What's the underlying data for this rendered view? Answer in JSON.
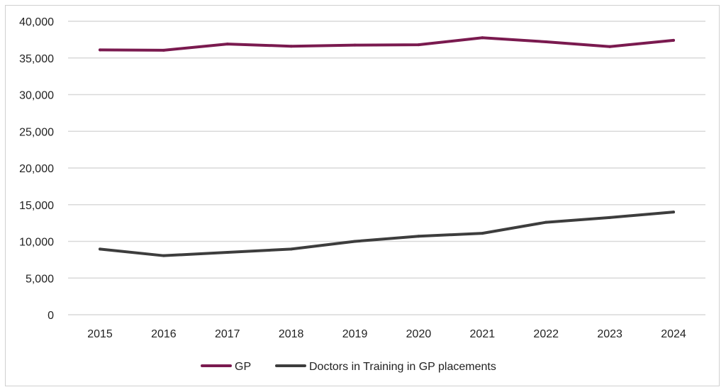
{
  "chart_data": {
    "type": "line",
    "title": "",
    "xlabel": "",
    "ylabel": "",
    "categories": [
      "2015",
      "2016",
      "2017",
      "2018",
      "2019",
      "2020",
      "2021",
      "2022",
      "2023",
      "2024"
    ],
    "ylim": [
      0,
      40000
    ],
    "yticks": [
      0,
      5000,
      10000,
      15000,
      20000,
      25000,
      30000,
      35000,
      40000
    ],
    "ytick_labels": [
      "0",
      "5,000",
      "10,000",
      "15,000",
      "20,000",
      "25,000",
      "30,000",
      "35,000",
      "40,000"
    ],
    "grid": true,
    "legend_position": "bottom",
    "series": [
      {
        "name": "GP",
        "color": "#7a1a4f",
        "values": [
          36100,
          36050,
          36900,
          36600,
          36750,
          36800,
          37750,
          37200,
          36550,
          37400
        ]
      },
      {
        "name": "Doctors in Training in GP placements",
        "color": "#3d3d3d",
        "values": [
          8950,
          8050,
          8500,
          8950,
          10000,
          10700,
          11100,
          12600,
          13250,
          14000
        ]
      }
    ]
  }
}
